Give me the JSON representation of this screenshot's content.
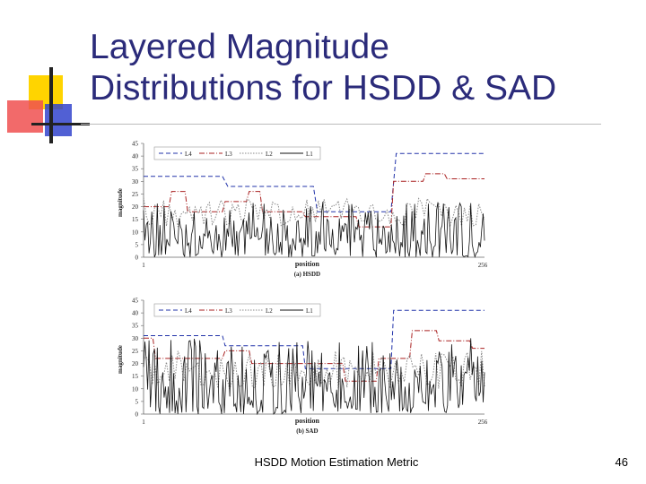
{
  "slide": {
    "title_line1": "Layered Magnitude",
    "title_line2": "Distributions for HSDD & SAD",
    "footer": "HSDD Motion Estimation Metric",
    "page_number": "46"
  },
  "colors": {
    "title": "#2b2b7a",
    "accent_yellow": "#ffd400",
    "accent_red": "#f05050",
    "accent_blue": "#3344cc",
    "L4": "#2233aa",
    "L3": "#aa2222",
    "L2": "#888888",
    "L1": "#111111"
  },
  "chart_data": [
    {
      "type": "line",
      "caption": "(a) HSDD",
      "xlabel": "position",
      "ylabel": "magnitude",
      "xlim": [
        1,
        256
      ],
      "x_ticks": [
        "1",
        "256"
      ],
      "ylim": [
        0,
        45
      ],
      "y_ticks": [
        "0",
        "5",
        "10",
        "15",
        "20",
        "25",
        "30",
        "35",
        "40",
        "45"
      ],
      "legend": [
        "L4",
        "L3",
        "L2",
        "L1"
      ],
      "series": [
        {
          "name": "L4",
          "style": "dashed",
          "segments": [
            [
              1,
              32
            ],
            [
              60,
              32
            ],
            [
              64,
              28
            ],
            [
              128,
              28
            ],
            [
              131,
              18
            ],
            [
              186,
              18
            ],
            [
              190,
              41
            ],
            [
              256,
              41
            ]
          ]
        },
        {
          "name": "L3",
          "style": "dashdot",
          "segments": [
            [
              1,
              20
            ],
            [
              20,
              20
            ],
            [
              22,
              26
            ],
            [
              32,
              26
            ],
            [
              34,
              18
            ],
            [
              60,
              18
            ],
            [
              62,
              22
            ],
            [
              78,
              22
            ],
            [
              80,
              26
            ],
            [
              88,
              26
            ],
            [
              90,
              18
            ],
            [
              120,
              18
            ],
            [
              122,
              16
            ],
            [
              160,
              16
            ],
            [
              162,
              12
            ],
            [
              186,
              12
            ],
            [
              188,
              30
            ],
            [
              210,
              30
            ],
            [
              212,
              33
            ],
            [
              226,
              33
            ],
            [
              228,
              31
            ],
            [
              256,
              31
            ]
          ]
        },
        {
          "name": "L2",
          "style": "dotted",
          "amplitude": [
            12,
            24
          ],
          "note": "fluctuating, segment-wise"
        },
        {
          "name": "L1",
          "style": "solid",
          "amplitude": [
            0,
            22
          ],
          "note": "highly fluctuating"
        }
      ]
    },
    {
      "type": "line",
      "caption": "(b) SAD",
      "xlabel": "position",
      "ylabel": "magnitude",
      "xlim": [
        1,
        256
      ],
      "x_ticks": [
        "1",
        "256"
      ],
      "ylim": [
        0,
        45
      ],
      "y_ticks": [
        "0",
        "5",
        "10",
        "15",
        "20",
        "25",
        "30",
        "35",
        "40",
        "45"
      ],
      "legend": [
        "L4",
        "L3",
        "L2",
        "L1"
      ],
      "series": [
        {
          "name": "L4",
          "style": "dashed",
          "segments": [
            [
              1,
              31
            ],
            [
              60,
              31
            ],
            [
              62,
              27
            ],
            [
              120,
              27
            ],
            [
              122,
              18
            ],
            [
              186,
              18
            ],
            [
              188,
              41
            ],
            [
              256,
              41
            ]
          ]
        },
        {
          "name": "L3",
          "style": "dashdot",
          "segments": [
            [
              1,
              30
            ],
            [
              8,
              30
            ],
            [
              10,
              22
            ],
            [
              60,
              22
            ],
            [
              62,
              25
            ],
            [
              80,
              25
            ],
            [
              82,
              20
            ],
            [
              150,
              20
            ],
            [
              152,
              13
            ],
            [
              175,
              13
            ],
            [
              177,
              22
            ],
            [
              200,
              22
            ],
            [
              202,
              33
            ],
            [
              220,
              33
            ],
            [
              222,
              29
            ],
            [
              245,
              29
            ],
            [
              247,
              26
            ],
            [
              256,
              26
            ]
          ]
        },
        {
          "name": "L2",
          "style": "dotted",
          "amplitude": [
            10,
            25
          ],
          "note": "fluctuating, segment-wise"
        },
        {
          "name": "L1",
          "style": "solid",
          "amplitude": [
            0,
            30
          ],
          "note": "highly fluctuating"
        }
      ]
    }
  ]
}
